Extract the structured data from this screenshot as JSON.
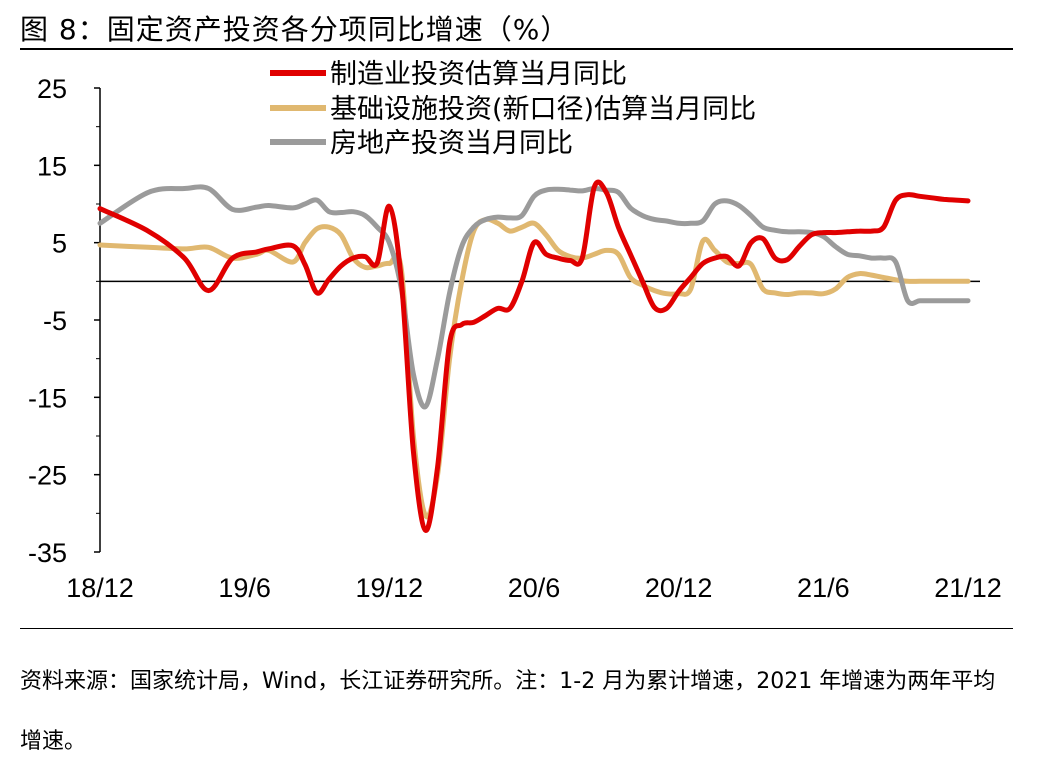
{
  "figure_title": "图 8：固定资产投资各分项同比增速（%）",
  "source_note": "资料来源：国家统计局，Wind，长江证券研究所。注：1-2 月为累计增速，2021 年增速为两年平均增速。",
  "chart_data": {
    "type": "line",
    "title": "固定资产投资各分项同比增速（%）",
    "xlabel": "",
    "ylabel": "",
    "ylim": [
      -35,
      25
    ],
    "yticks": [
      25,
      15,
      5,
      -5,
      -15,
      -25,
      -35
    ],
    "ytick_labels": [
      "25",
      "15",
      "5",
      "-5",
      "-15",
      "-25",
      "-35"
    ],
    "xlim": [
      0,
      36
    ],
    "xticks": [
      {
        "pos": 0,
        "label": "18/12"
      },
      {
        "pos": 6,
        "label": "19/6"
      },
      {
        "pos": 12,
        "label": "19/12"
      },
      {
        "pos": 18,
        "label": "20/6"
      },
      {
        "pos": 24,
        "label": "20/12"
      },
      {
        "pos": 30,
        "label": "21/6"
      },
      {
        "pos": 36,
        "label": "21/12"
      }
    ],
    "grid": false,
    "legend_position": "top-center",
    "x": [
      0,
      2,
      3.5,
      4.5,
      5.5,
      6.5,
      7,
      8,
      8.5,
      9,
      9.5,
      10,
      10.5,
      11,
      11.5,
      12,
      12.5,
      13,
      13.5,
      14,
      14.5,
      15,
      15.5,
      16,
      16.5,
      17,
      17.5,
      18,
      18.5,
      19,
      19.5,
      20,
      20.5,
      21,
      21.5,
      22,
      22.5,
      23,
      23.5,
      24,
      24.5,
      25,
      25.5,
      26,
      26.5,
      27,
      27.5,
      28,
      28.5,
      29,
      29.5,
      30,
      30.5,
      31,
      31.5,
      32,
      32.5,
      33,
      33.5,
      34,
      34.5,
      35,
      35.5,
      36
    ],
    "series": [
      {
        "name": "制造业投资估算当月同比",
        "color": "#E00000",
        "values": [
          9.4,
          6.5,
          3.0,
          -1.2,
          3.0,
          3.8,
          4.2,
          4.6,
          2.2,
          -1.5,
          0.3,
          2.0,
          3.0,
          3.2,
          2.4,
          9.7,
          0.0,
          -22.0,
          -32.2,
          -24.0,
          -8.0,
          -5.6,
          -5.3,
          -4.4,
          -3.5,
          -3.5,
          0.0,
          5.0,
          3.5,
          3.0,
          2.7,
          3.0,
          12.2,
          11.5,
          7.0,
          3.5,
          0.0,
          -3.4,
          -3.5,
          -1.3,
          0.5,
          2.3,
          3.0,
          3.2,
          2.0,
          5.0,
          5.5,
          3.0,
          2.8,
          4.5,
          6.0,
          6.3,
          6.3,
          6.4,
          6.5,
          6.5,
          7.0,
          10.5,
          11.2,
          11.0,
          10.8,
          10.6,
          10.5,
          10.4
        ]
      },
      {
        "name": "基础设施投资(新口径)估算当月同比",
        "color": "#E0B870",
        "values": [
          4.7,
          4.4,
          4.2,
          4.4,
          3.0,
          3.5,
          4.0,
          2.5,
          5.0,
          6.8,
          7.0,
          6.0,
          3.0,
          1.8,
          2.0,
          2.3,
          1.5,
          -20.0,
          -30.3,
          -25.0,
          -10.0,
          0.0,
          6.5,
          8.0,
          7.5,
          6.5,
          7.0,
          7.5,
          6.0,
          4.0,
          3.2,
          3.0,
          3.5,
          4.0,
          3.5,
          0.5,
          -0.5,
          -1.2,
          -1.6,
          -1.6,
          -1.0,
          5.2,
          4.0,
          2.5,
          2.3,
          2.2,
          -1.0,
          -1.5,
          -1.7,
          -1.5,
          -1.5,
          -1.6,
          -1.0,
          0.5,
          1.0,
          0.8,
          0.5,
          0.2,
          0.0,
          0.0,
          0.0,
          0.0,
          0.0,
          0.0
        ]
      },
      {
        "name": "房地产投资当月同比",
        "color": "#9B9B9B",
        "values": [
          7.5,
          11.5,
          12.0,
          12.0,
          9.3,
          9.6,
          9.8,
          9.5,
          10.0,
          10.5,
          9.0,
          8.9,
          9.0,
          8.5,
          7.0,
          5.0,
          -1.0,
          -12.0,
          -16.2,
          -10.0,
          -1.5,
          4.5,
          7.0,
          8.0,
          8.3,
          8.2,
          8.5,
          11.0,
          11.8,
          11.9,
          11.8,
          11.7,
          12.0,
          11.8,
          11.5,
          9.5,
          8.5,
          8.0,
          7.8,
          7.5,
          7.5,
          7.8,
          10.0,
          10.4,
          9.8,
          8.5,
          7.0,
          6.6,
          6.4,
          6.4,
          6.3,
          5.8,
          4.5,
          3.5,
          3.3,
          3.0,
          3.0,
          2.5,
          -2.5,
          -2.5,
          -2.5,
          -2.5,
          -2.5,
          -2.5
        ]
      }
    ]
  }
}
